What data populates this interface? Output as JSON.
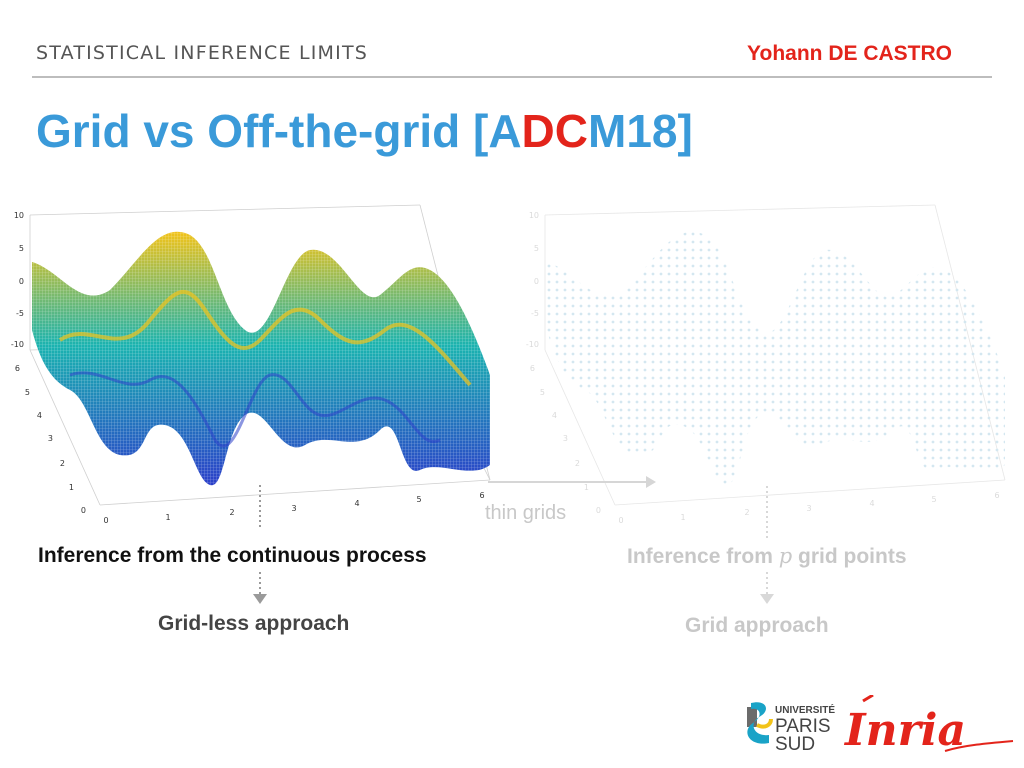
{
  "header": {
    "section": "STATISTICAL INFERENCE LIMITS",
    "author": "Yohann DE CASTRO"
  },
  "title": {
    "part1": "Grid vs Off-the-grid [A",
    "highlight": "DC",
    "part2": "M18]"
  },
  "plots": {
    "left": {
      "z_ticks": [
        "10",
        "5",
        "0",
        "-5",
        "-10"
      ],
      "y_ticks": [
        "6",
        "5",
        "4",
        "3",
        "2",
        "1",
        "0"
      ],
      "x_ticks": [
        "0",
        "1",
        "2",
        "3",
        "4",
        "5",
        "6"
      ]
    },
    "right": {
      "z_ticks": [
        "10",
        "5",
        "0",
        "-5",
        "-10"
      ],
      "y_ticks": [
        "6",
        "5",
        "4",
        "3",
        "2",
        "1",
        "0"
      ],
      "x_ticks": [
        "0",
        "1",
        "2",
        "3",
        "4",
        "5",
        "6"
      ]
    }
  },
  "labels": {
    "thin_grids": "thin grids",
    "continuous": "Inference from the continuous process",
    "grid_points_pre": "Inference from ",
    "grid_points_var": "p",
    "grid_points_post": " grid points",
    "gridless": "Grid-less approach",
    "grid": "Grid approach"
  },
  "logos": {
    "univ_line1": "UNIVERSITÉ",
    "univ_line2": "PARIS",
    "univ_line3": "SUD",
    "inria": "Inria"
  },
  "colors": {
    "title_blue": "#3a9ad9",
    "accent_red": "#e3241b",
    "surface_low": "#2b3fc9",
    "surface_mid": "#1ab3b0",
    "surface_high": "#f2c319"
  }
}
